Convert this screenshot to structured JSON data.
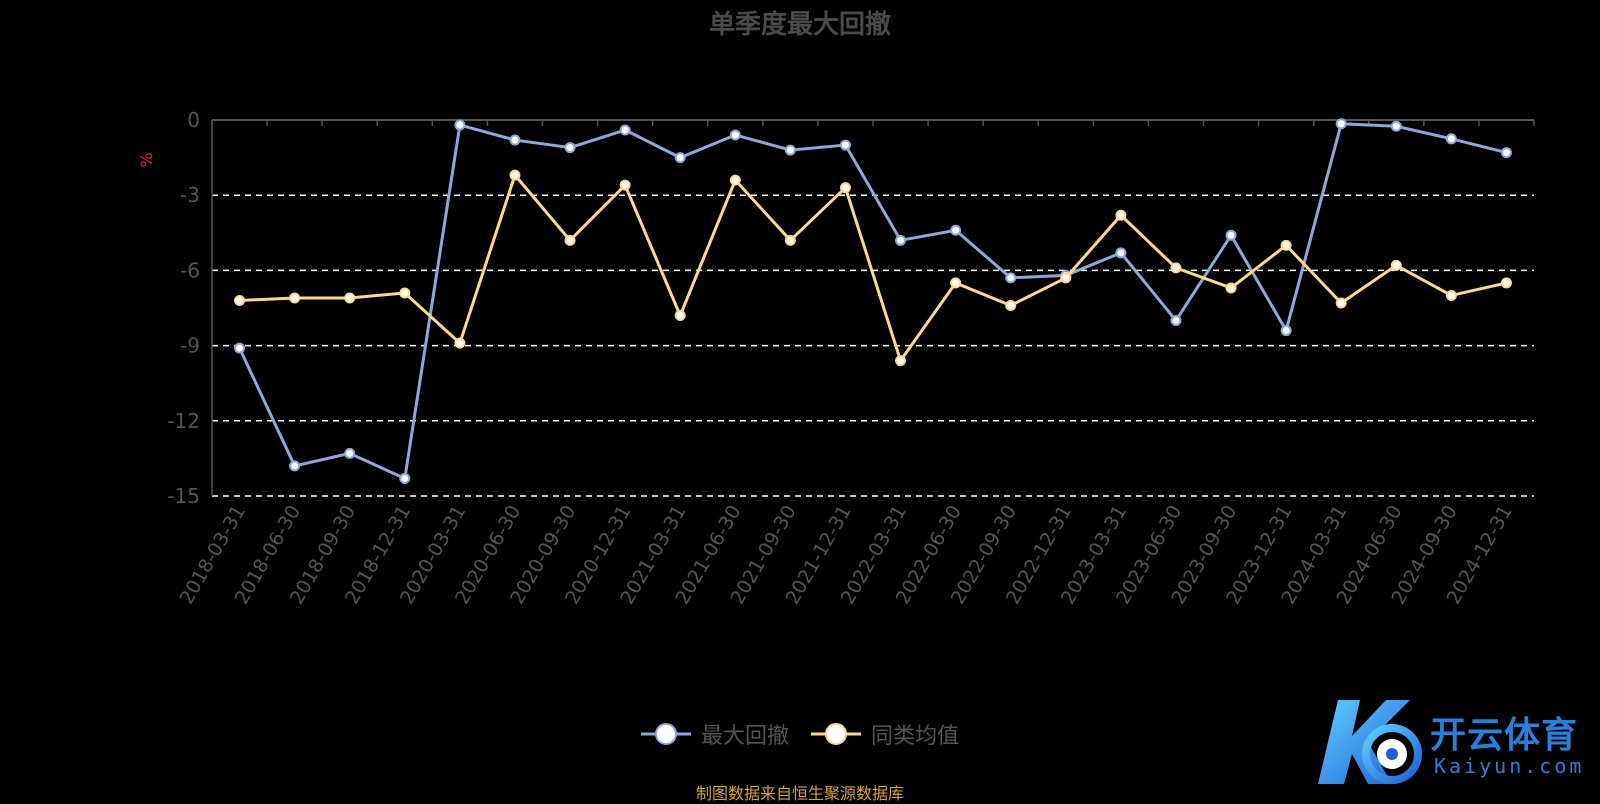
{
  "title": "单季度最大回撤",
  "source_note": "制图数据来自恒生聚源数据库",
  "watermark": {
    "cn": "开云体育",
    "en": "Kaiyun.com"
  },
  "colors": {
    "background": "#000000",
    "series1": "#8fa8d8",
    "series2": "#fbd98f",
    "grid": "#ffffff",
    "axis": "#555555",
    "tick_label": "#555555",
    "ylabel": "#e03030",
    "source_note": "#d4a33a",
    "watermark": "#2a7fd8"
  },
  "chart_data": {
    "type": "line",
    "title": "单季度最大回撤",
    "ylabel": "%",
    "xlabel": "",
    "ylim": [
      -15,
      0
    ],
    "yticks": [
      0,
      -3,
      -6,
      -9,
      -12,
      -15
    ],
    "grid": true,
    "legend_position": "bottom",
    "categories": [
      "2018-03-31",
      "2018-06-30",
      "2018-09-30",
      "2018-12-31",
      "2020-03-31",
      "2020-06-30",
      "2020-09-30",
      "2020-12-31",
      "2021-03-31",
      "2021-06-30",
      "2021-09-30",
      "2021-12-31",
      "2022-03-31",
      "2022-06-30",
      "2022-09-30",
      "2022-12-31",
      "2023-03-31",
      "2023-06-30",
      "2023-09-30",
      "2023-12-31",
      "2024-03-31",
      "2024-06-30",
      "2024-09-30",
      "2024-12-31"
    ],
    "series": [
      {
        "name": "最大回撤",
        "color": "#8fa8d8",
        "values": [
          -9.1,
          -13.8,
          -13.3,
          -14.3,
          -0.2,
          -0.8,
          -1.1,
          -0.4,
          -1.5,
          -0.6,
          -1.2,
          -1.0,
          -4.8,
          -4.4,
          -6.3,
          -6.2,
          -5.3,
          -8.0,
          -4.6,
          -8.4,
          -0.15,
          -0.25,
          -0.75,
          -1.3
        ]
      },
      {
        "name": "同类均值",
        "color": "#fbd98f",
        "values": [
          -7.2,
          -7.1,
          -7.1,
          -6.9,
          -8.9,
          -2.2,
          -4.8,
          -2.6,
          -7.8,
          -2.4,
          -4.8,
          -2.7,
          -9.6,
          -6.5,
          -7.4,
          -6.3,
          -3.8,
          -5.9,
          -6.7,
          -5.0,
          -7.3,
          -5.8,
          -7.0,
          -6.5
        ]
      }
    ]
  }
}
